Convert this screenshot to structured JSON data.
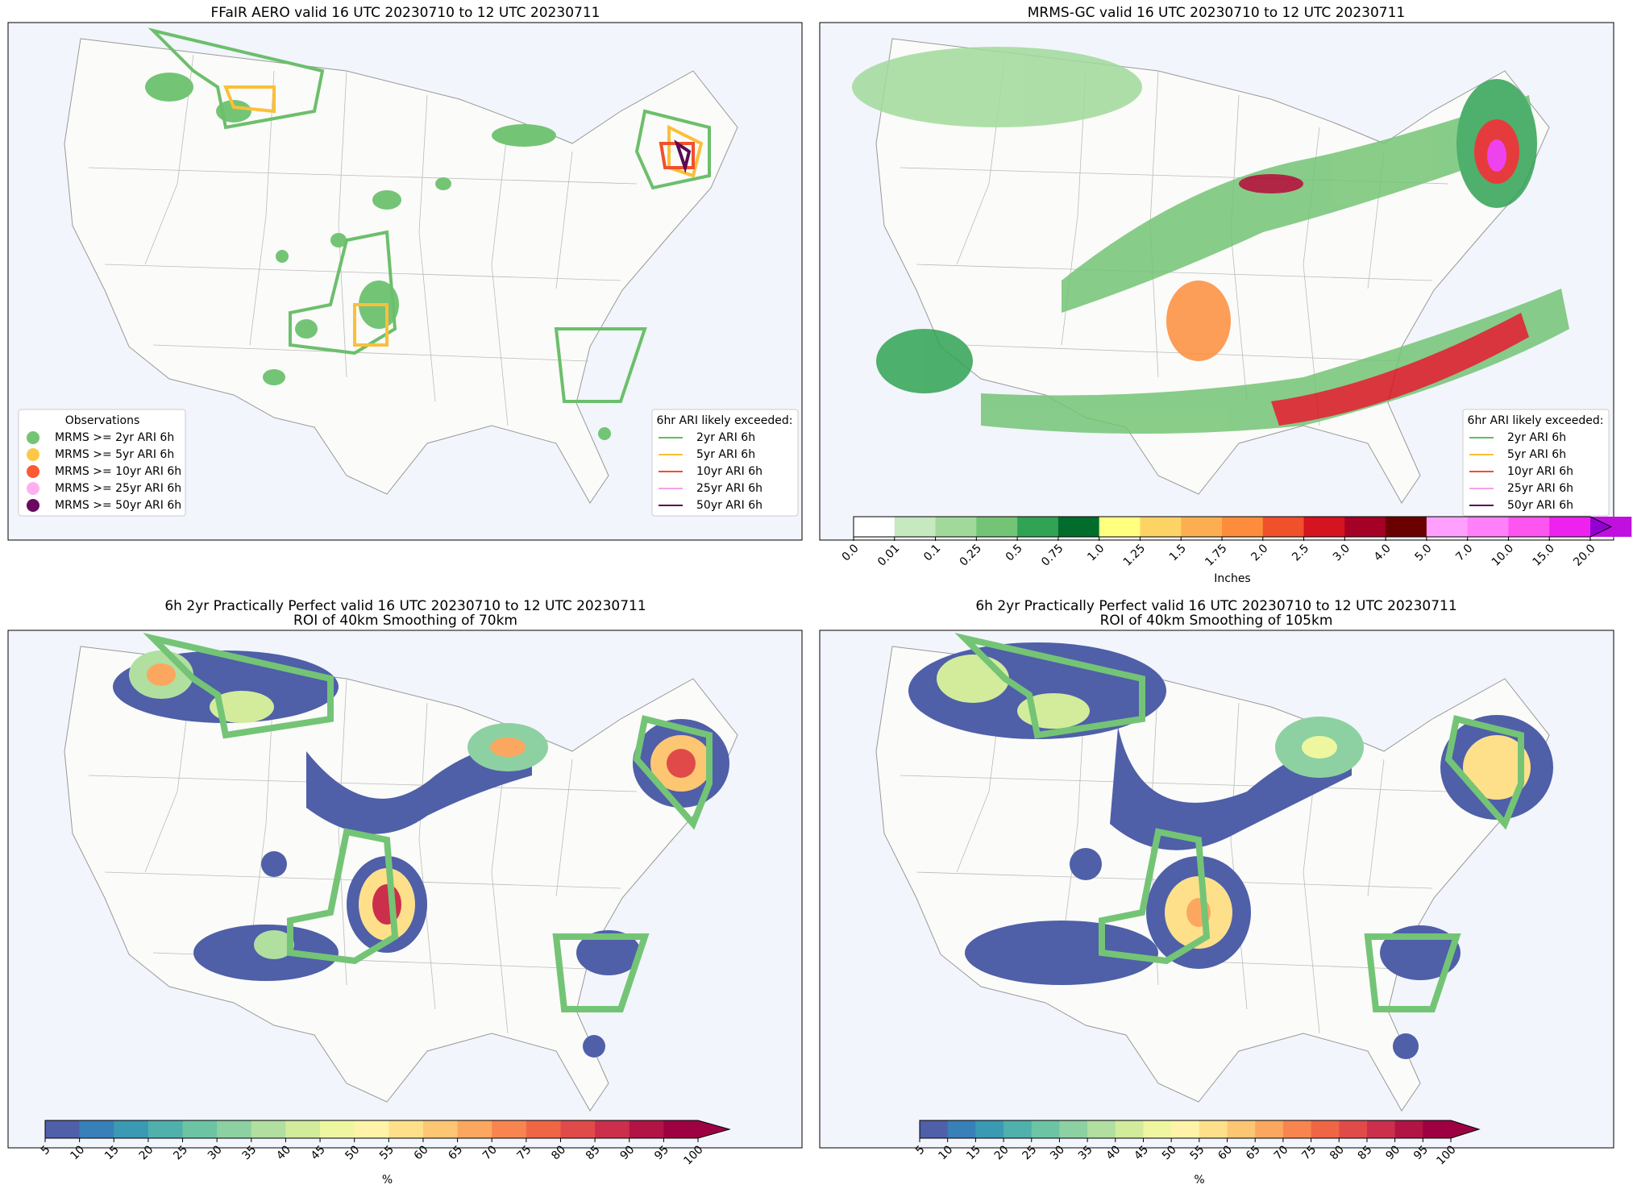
{
  "panels": [
    {
      "title": "FFaIR AERO valid 16 UTC 20230710 to 12 UTC 20230711",
      "obs_legend": {
        "title": "Observations",
        "items": [
          {
            "label": "MRMS >= 2yr ARI 6h",
            "color": "#74c476"
          },
          {
            "label": "MRMS >= 5yr ARI 6h",
            "color": "#fdc848"
          },
          {
            "label": "MRMS >= 10yr ARI 6h",
            "color": "#fc5a32"
          },
          {
            "label": "MRMS >= 25yr ARI 6h",
            "color": "#ffb0f0"
          },
          {
            "label": "MRMS >= 50yr ARI 6h",
            "color": "#6a0a5f"
          }
        ]
      },
      "ari_legend": {
        "title": "6hr ARI likely exceeded:",
        "items": [
          {
            "label": "2yr ARI 6h",
            "color": "#5fbf5f"
          },
          {
            "label": "5yr ARI 6h",
            "color": "#fbbf3a"
          },
          {
            "label": "10yr ARI 6h",
            "color": "#f0502a"
          },
          {
            "label": "25yr ARI 6h",
            "color": "#f7a0e8"
          },
          {
            "label": "50yr ARI 6h",
            "color": "#5a0a4f"
          }
        ]
      }
    },
    {
      "title": "MRMS-GC valid 16 UTC 20230710 to 12 UTC 20230711",
      "ari_legend": {
        "title": "6hr ARI likely exceeded:",
        "items": [
          {
            "label": "2yr ARI 6h",
            "color": "#5fbf5f"
          },
          {
            "label": "5yr ARI 6h",
            "color": "#fbbf3a"
          },
          {
            "label": "10yr ARI 6h",
            "color": "#f0502a"
          },
          {
            "label": "25yr ARI 6h",
            "color": "#f7a0e8"
          },
          {
            "label": "50yr ARI 6h",
            "color": "#5a0a4f"
          }
        ]
      },
      "colorbar": {
        "label": "Inches",
        "ticks": [
          "0.0",
          "0.01",
          "0.1",
          "0.25",
          "0.5",
          "0.75",
          "1.0",
          "1.25",
          "1.5",
          "1.75",
          "2.0",
          "2.5",
          "3.0",
          "4.0",
          "5.0",
          "7.0",
          "10.0",
          "15.0",
          "20.0"
        ],
        "colors": [
          "#ffffff",
          "#c7e9c0",
          "#a1d99b",
          "#74c476",
          "#31a354",
          "#006d2c",
          "#ffff80",
          "#fed365",
          "#fdae50",
          "#fd8d3c",
          "#f0502a",
          "#d4141e",
          "#a50026",
          "#6b0000",
          "#ffa0ff",
          "#ff80f8",
          "#ff55f0",
          "#ee22ee",
          "#c010e0"
        ],
        "over_color": "#9400d3"
      }
    },
    {
      "title": "6h 2yr Practically Perfect valid 16 UTC 20230710 to 12 UTC 20230711",
      "subtitle": "ROI of 40km Smoothing of 70km",
      "colorbar": {
        "label": "%",
        "ticks": [
          "5",
          "10",
          "15",
          "20",
          "25",
          "30",
          "35",
          "40",
          "45",
          "50",
          "55",
          "60",
          "65",
          "70",
          "75",
          "80",
          "85",
          "90",
          "95",
          "100"
        ],
        "colors": [
          "#4f5fa8",
          "#3880b8",
          "#3a9ab4",
          "#4fb0ac",
          "#6cc4a4",
          "#8dd1a3",
          "#b0dfa0",
          "#d2ec9c",
          "#eef7a0",
          "#fef3a8",
          "#fee08b",
          "#fdc673",
          "#fca75f",
          "#f88550",
          "#ef6645",
          "#e04b4a",
          "#cc2f4c",
          "#b21446",
          "#9e0142"
        ],
        "over_color": "#9e0142"
      }
    },
    {
      "title": "6h 2yr Practically Perfect valid 16 UTC 20230710 to 12 UTC 20230711",
      "subtitle": "ROI of 40km Smoothing of 105km",
      "colorbar": {
        "label": "%",
        "ticks": [
          "5",
          "10",
          "15",
          "20",
          "25",
          "30",
          "35",
          "40",
          "45",
          "50",
          "55",
          "60",
          "65",
          "70",
          "75",
          "80",
          "85",
          "90",
          "95",
          "100"
        ],
        "colors": [
          "#4f5fa8",
          "#3880b8",
          "#3a9ab4",
          "#4fb0ac",
          "#6cc4a4",
          "#8dd1a3",
          "#b0dfa0",
          "#d2ec9c",
          "#eef7a0",
          "#fef3a8",
          "#fee08b",
          "#fdc673",
          "#fca75f",
          "#f88550",
          "#ef6645",
          "#e04b4a",
          "#cc2f4c",
          "#b21446",
          "#9e0142"
        ],
        "over_color": "#9e0142"
      }
    }
  ]
}
